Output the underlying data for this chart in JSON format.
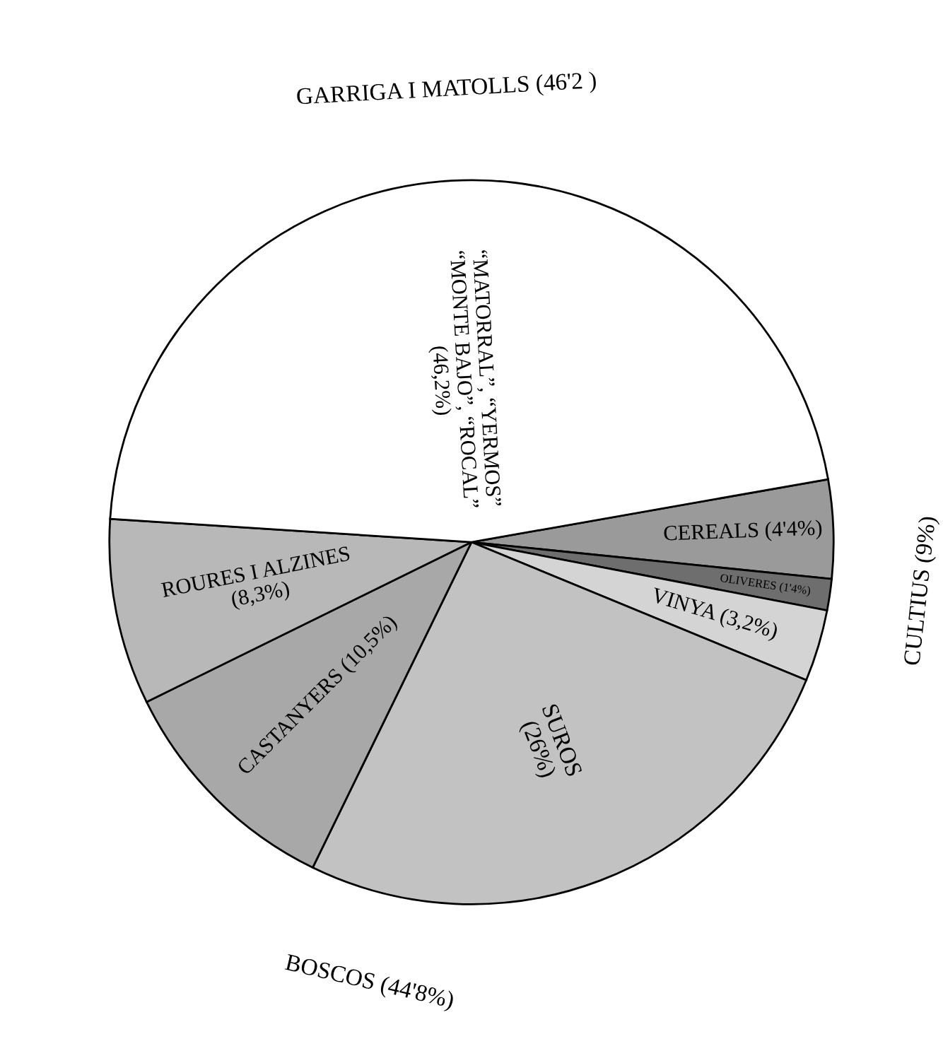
{
  "chart_data": {
    "type": "pie",
    "categories": [
      "CEREALS (4'4%)",
      "OLIVERES (1'4%)",
      "VINYA (3,2%)",
      "SUROS\n(26%)",
      "CASTANYERS (10,5%)",
      "ROURES I ALZINES\n(8,3%)",
      "“MATORRAL”, “YERMOS”\n“MONTE BAJO”, “ROCAL”\n(46,2%)"
    ],
    "values": [
      4.4,
      1.4,
      3.2,
      26,
      10.5,
      8.3,
      46.2
    ],
    "colors": [
      "#9a9a9a",
      "#6e6e6e",
      "#d4d4d4",
      "#c2c2c2",
      "#a8a8a8",
      "#b8b8b8",
      "#ffffff"
    ],
    "annotations": [
      "CULTIUS (9%)",
      "BOSCOS (44'8%)",
      "GARRIGA I MATOLLS (46'2 )"
    ]
  }
}
